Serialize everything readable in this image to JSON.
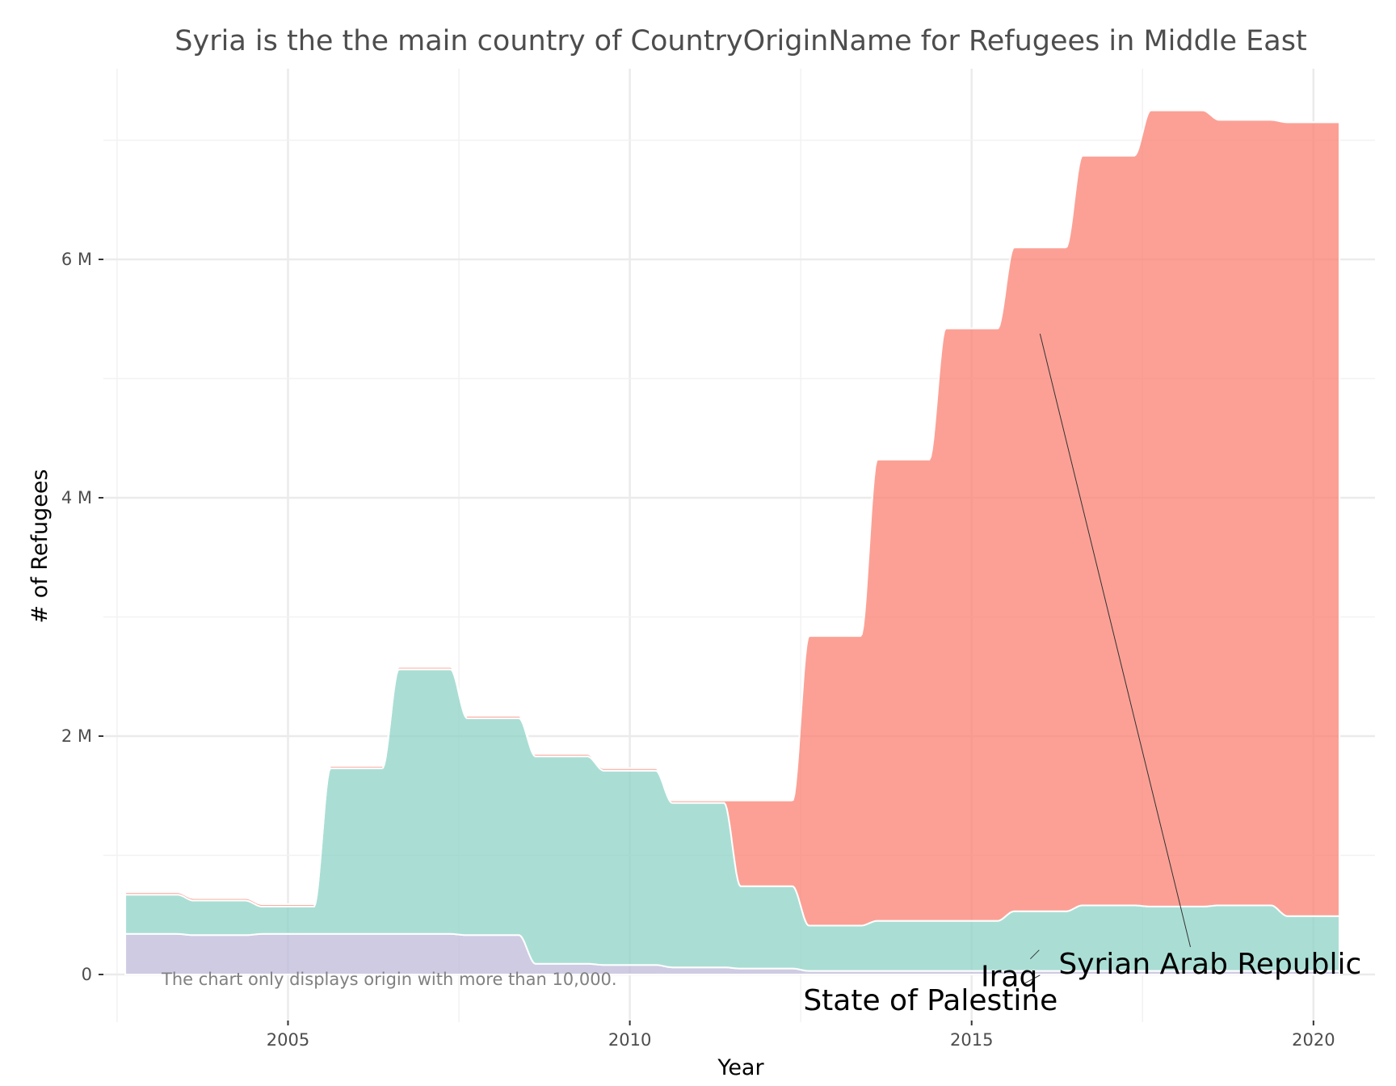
{
  "chart_data": {
    "type": "area",
    "title": "Syria is the the main country of CountryOriginName for Refugees in Middle East",
    "xlabel": "Year",
    "ylabel": "# of Refugees",
    "caption": "The chart only displays origin with more than 10,000.",
    "x_ticks": [
      2005,
      2010,
      2015,
      2020
    ],
    "y_ticks": [
      0,
      2000000,
      4000000,
      6000000
    ],
    "y_tick_labels": [
      "0",
      "2 M",
      "4 M",
      "6 M"
    ],
    "xlim": [
      2002.3,
      2020.9
    ],
    "ylim": [
      -400000,
      7600000
    ],
    "grid": true,
    "legend": "none",
    "x": [
      2003,
      2004,
      2005,
      2006,
      2007,
      2008,
      2009,
      2010,
      2011,
      2012,
      2013,
      2014,
      2015,
      2016,
      2017,
      2018,
      2019,
      2020
    ],
    "series": [
      {
        "name": "State of Palestine",
        "color": "#bebada",
        "values": [
          340000,
          330000,
          340000,
          340000,
          340000,
          330000,
          90000,
          80000,
          60000,
          50000,
          30000,
          30000,
          30000,
          30000,
          30000,
          30000,
          30000,
          30000
        ]
      },
      {
        "name": "Iraq",
        "color": "#8dd3c7",
        "values": [
          330000,
          290000,
          230000,
          1390000,
          2220000,
          1820000,
          1740000,
          1630000,
          1380000,
          690000,
          380000,
          420000,
          420000,
          500000,
          550000,
          540000,
          550000,
          460000
        ]
      },
      {
        "name": "Syrian Arab Republic",
        "color": "#fb8072",
        "values": [
          20000,
          20000,
          20000,
          20000,
          20000,
          20000,
          20000,
          20000,
          20000,
          720000,
          2430000,
          3870000,
          4970000,
          5570000,
          6290000,
          6680000,
          6590000,
          6660000
        ]
      }
    ],
    "labels": [
      {
        "text": "Iraq",
        "series": "Iraq"
      },
      {
        "text": "Syrian Arab Republic",
        "series": "Syrian Arab Republic"
      },
      {
        "text": "State of Palestine",
        "series": "State of Palestine"
      }
    ]
  }
}
